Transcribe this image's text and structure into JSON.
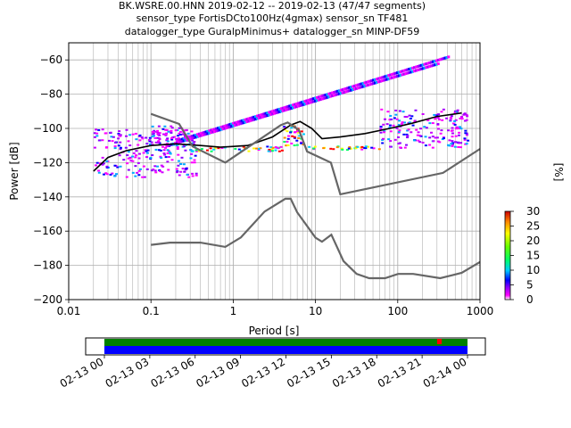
{
  "title_lines": [
    "BK.WSRE.00.HNN   2019-02-12 -- 2019-02-13  (47/47 segments)",
    "sensor_type FortisDCto100Hz(4gmax) sensor_sn TF481",
    "datalogger_type GuralpMinimus+ datalogger_sn MINP-DF59"
  ],
  "chart_data": {
    "type": "heatmap",
    "xlabel": "Period [s]",
    "ylabel": "Power [dB]",
    "xscale": "log",
    "xlim": [
      0.01,
      1000
    ],
    "ylim": [
      -200,
      -50
    ],
    "xticks": [
      {
        "value": 0.01,
        "label": "0.01"
      },
      {
        "value": 0.1,
        "label": "0.1"
      },
      {
        "value": 1,
        "label": "1"
      },
      {
        "value": 10,
        "label": "10"
      },
      {
        "value": 100,
        "label": "100"
      },
      {
        "value": 1000,
        "label": "1000"
      }
    ],
    "yticks": [
      {
        "value": -60,
        "label": "−60"
      },
      {
        "value": -80,
        "label": "−80"
      },
      {
        "value": -100,
        "label": "−100"
      },
      {
        "value": -120,
        "label": "−120"
      },
      {
        "value": -140,
        "label": "−140"
      },
      {
        "value": -160,
        "label": "−160"
      },
      {
        "value": -180,
        "label": "−180"
      },
      {
        "value": -200,
        "label": "−200"
      }
    ],
    "grid": true,
    "colorbar": {
      "label": "[%]",
      "range": [
        0,
        30
      ],
      "ticks": [
        "0",
        "5",
        "10",
        "15",
        "20",
        "25",
        "30"
      ]
    },
    "series": [
      {
        "role": "mean",
        "color": "#000000",
        "x": [
          0.02,
          0.03,
          0.05,
          0.1,
          0.2,
          0.4,
          0.7,
          1.5,
          3,
          5,
          6.5,
          9,
          12,
          20,
          40,
          80,
          150,
          300,
          600
        ],
        "y": [
          -125,
          -117,
          -113,
          -110,
          -109,
          -110,
          -111,
          -110,
          -105,
          -98,
          -96,
          -100,
          -106,
          -105,
          -103,
          -100,
          -97,
          -93,
          -91
        ]
      },
      {
        "role": "high-noise-model",
        "color": "#666666",
        "x": [
          0.1,
          0.22,
          0.32,
          0.8,
          3.8,
          4.6,
          6.3,
          7.9,
          15.4,
          20,
          354.8,
          1000
        ],
        "y": [
          -91.5,
          -97.4,
          -110.5,
          -120,
          -98,
          -96.5,
          -101,
          -113.5,
          -120,
          -138.5,
          -126,
          -112
        ]
      },
      {
        "role": "low-noise-model",
        "color": "#666666",
        "x": [
          0.1,
          0.17,
          0.4,
          0.8,
          1.24,
          2.4,
          4.3,
          5,
          6,
          10,
          12,
          15.6,
          21.9,
          31.6,
          45,
          70,
          101,
          154,
          328,
          600,
          1000
        ],
        "y": [
          -168,
          -166.7,
          -166.7,
          -169.2,
          -163.7,
          -148.6,
          -141.1,
          -141.1,
          -149,
          -163.8,
          -166.2,
          -162.1,
          -177.5,
          -185,
          -187.5,
          -187.5,
          -185,
          -185,
          -187.5,
          -184.4,
          -178
        ]
      }
    ],
    "heatmap_bands": [
      {
        "x_from": 0.02,
        "x_to": 0.35,
        "y_from": -128,
        "y_to": -100,
        "level": "medium"
      },
      {
        "x_from": 0.1,
        "x_to": 0.28,
        "y_from": -106,
        "y_to": -98,
        "level": "medium"
      },
      {
        "x_from": 0.3,
        "x_to": 4,
        "y_from": -113,
        "y_to": -110,
        "level": "high"
      },
      {
        "x_from": 4,
        "x_to": 7,
        "y_from": -110,
        "y_to": -98,
        "level": "high"
      },
      {
        "x_from": 7,
        "x_to": 60,
        "y_from": -112,
        "y_to": -110,
        "level": "high"
      },
      {
        "x_from": 60,
        "x_to": 700,
        "y_from": -111,
        "y_to": -88,
        "level": "medium"
      }
    ],
    "spur_lines": [
      {
        "x_from": 0.2,
        "x_to": 400,
        "y_from": -107,
        "y_to": -58
      },
      {
        "x_from": 0.15,
        "x_to": 300,
        "y_from": -110,
        "y_to": -62
      }
    ]
  },
  "timeline": {
    "ticks": [
      "02-13 00",
      "02-13 03",
      "02-13 06",
      "02-13 09",
      "02-13 12",
      "02-13 15",
      "02-13 18",
      "02-13 21",
      "02-14 00"
    ],
    "bar_colors": {
      "top": "#008000",
      "bottom": "#0000ff",
      "marker": "#ff0000"
    }
  },
  "colors": {
    "grid": "#b0b0b0",
    "model_line": "#666666",
    "mean_line": "#000000"
  }
}
